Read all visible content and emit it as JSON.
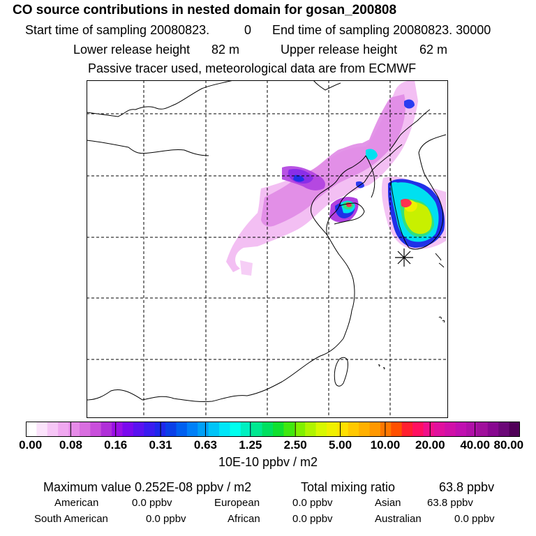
{
  "header": {
    "title": "CO  source contributions in nested domain for gosan_200808",
    "start_label": "Start time of sampling 20080823.",
    "start_hour": "0",
    "end_label": "End time of sampling 20080823. 30000",
    "lower_label": "Lower release height",
    "lower_value": "82 m",
    "upper_label": "Upper release height",
    "upper_value": "62 m",
    "note": "Passive tracer used, meteorological data are from ECMWF"
  },
  "colorbar": {
    "ticks": [
      "0.00",
      "0.08",
      "0.16",
      "0.31",
      "0.63",
      "1.25",
      "2.50",
      "5.00",
      "10.00",
      "20.00",
      "40.00",
      "80.00"
    ],
    "colors": [
      "#ffffff",
      "#fbe3fb",
      "#f6c6f6",
      "#f0a8f0",
      "#e68be8",
      "#d96ee0",
      "#c94fdb",
      "#b030d8",
      "#9a10e6",
      "#7a0aee",
      "#5a12f0",
      "#3a1cf0",
      "#1e28ec",
      "#0a40e8",
      "#0060f0",
      "#0080f8",
      "#00a0f8",
      "#00c4f8",
      "#00e6f8",
      "#00ffee",
      "#00f0c0",
      "#00e890",
      "#00e060",
      "#10e030",
      "#40e810",
      "#80f000",
      "#b0f400",
      "#d8f800",
      "#f0f000",
      "#ffe000",
      "#ffc800",
      "#ffb000",
      "#ff9800",
      "#ff7800",
      "#ff5000",
      "#ff2030",
      "#ff1060",
      "#f0108a",
      "#e0109e",
      "#d010a8",
      "#c010b0",
      "#b010a8",
      "#a0109c",
      "#880890",
      "#6c0878",
      "#500058"
    ],
    "units": "10E-10 ppbv / m2"
  },
  "stats": {
    "max_label": "Maximum value  0.252E-08 ppbv / m2",
    "total_label": "Total mixing ratio",
    "total_value": "63.8 ppbv",
    "regions": [
      {
        "name": "American",
        "value": "0.0 ppbv"
      },
      {
        "name": "European",
        "value": "0.0 ppbv"
      },
      {
        "name": "Asian",
        "value": "63.8 ppbv"
      },
      {
        "name": "South American",
        "value": "0.0 ppbv"
      },
      {
        "name": "African",
        "value": "0.0 ppbv"
      },
      {
        "name": "Australian",
        "value": "0.0 ppbv"
      }
    ]
  },
  "map": {
    "receptor_marker": "asterisk-icon",
    "colors": {
      "light_pink": "#f2b8f2",
      "pink": "#e08ae6",
      "violet": "#b040e0",
      "purple": "#8a2ee8",
      "blue": "#2030e8",
      "cyan": "#00e0f0",
      "green": "#30e080",
      "yellowgreen": "#c8f000",
      "yellow": "#f0f000",
      "red": "#ff3050"
    }
  }
}
